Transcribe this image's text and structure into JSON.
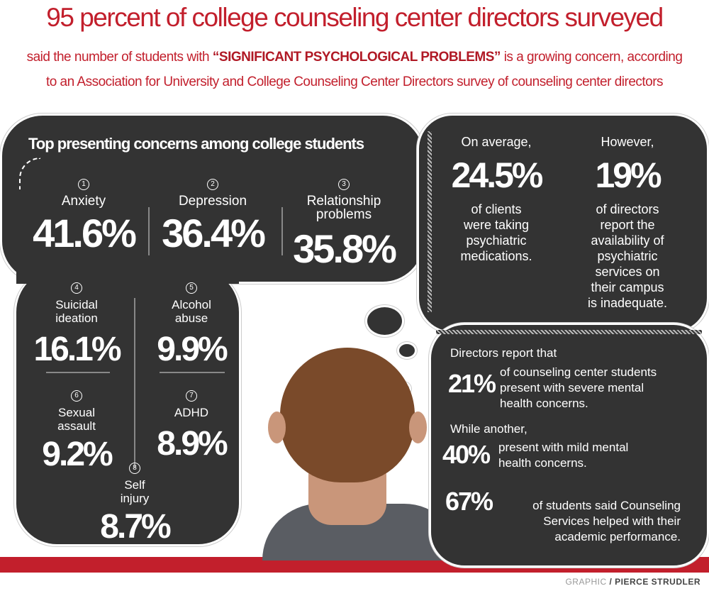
{
  "header": {
    "title": "95 percent of college counseling center directors surveyed",
    "subtitle_pre": "said the number of students with ",
    "subtitle_emph": "“SIGNIFICANT PSYCHOLOGICAL PROBLEMS”",
    "subtitle_post": " is a growing concern, according",
    "subtitle_line2": "to an Association for University and College Counseling Center Directors survey of counseling center directors"
  },
  "concerns": {
    "heading": "Top presenting concerns among college students",
    "items": [
      {
        "rank": "1",
        "label": "Anxiety",
        "label2": "",
        "value": "41.6%"
      },
      {
        "rank": "2",
        "label": "Depression",
        "label2": "",
        "value": "36.4%"
      },
      {
        "rank": "3",
        "label": "Relationship",
        "label2": "problems",
        "value": "35.8%"
      },
      {
        "rank": "4",
        "label": "Suicidal",
        "label2": "ideation",
        "value": "16.1%"
      },
      {
        "rank": "5",
        "label": "Alcohol",
        "label2": "abuse",
        "value": "9.9%"
      },
      {
        "rank": "6",
        "label": "Sexual",
        "label2": "assault",
        "value": "9.2%"
      },
      {
        "rank": "7",
        "label": "ADHD",
        "label2": "",
        "value": "8.9%"
      },
      {
        "rank": "8",
        "label": "Self",
        "label2": "injury",
        "value": "8.7%"
      }
    ]
  },
  "medications": {
    "intro": "On average,",
    "value": "24.5%",
    "lines": [
      "of clients",
      "were taking",
      "psychiatric",
      "medications."
    ]
  },
  "availability": {
    "intro": "However,",
    "value": "19%",
    "lines": [
      "of directors",
      "report the",
      "availability of",
      "psychiatric",
      "services on",
      "their campus",
      "is inadequate."
    ]
  },
  "severity": {
    "intro": "Directors report that",
    "severe_value": "21%",
    "severe_lines": [
      "of counseling center students",
      "present with severe mental",
      "health concerns."
    ],
    "mild_intro": "While another,",
    "mild_value": "40%",
    "mild_lines": [
      "present with mild mental",
      "health concerns."
    ],
    "helped_value": "67%",
    "helped_lines": [
      "of students said Counseling",
      "Services helped with their",
      "academic performance."
    ]
  },
  "credit": {
    "label": "GRAPHIC",
    "name": "/ PIERCE STRUDLER"
  },
  "colors": {
    "accent": "#c21f2c",
    "cloud": "#333333"
  }
}
